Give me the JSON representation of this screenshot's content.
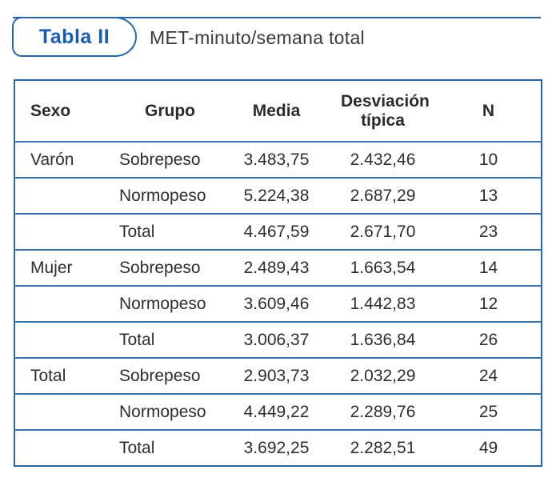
{
  "header": {
    "tab_label": "Tabla II",
    "title": "MET-minuto/semana total"
  },
  "colors": {
    "accent_blue": "#1b5aad",
    "border_blue": "#2a65a6",
    "row_line_blue": "#3b72aa",
    "text_dark": "#2e2e2e"
  },
  "table": {
    "columns": [
      "Sexo",
      "Grupo",
      "Media",
      "Desviación típica",
      "N"
    ],
    "rows": [
      {
        "sexo": "Varón",
        "grupo": "Sobrepeso",
        "media": "3.483,75",
        "desviacion": "2.432,46",
        "n": "10"
      },
      {
        "sexo": "",
        "grupo": "Normopeso",
        "media": "5.224,38",
        "desviacion": "2.687,29",
        "n": "13"
      },
      {
        "sexo": "",
        "grupo": "Total",
        "media": "4.467,59",
        "desviacion": "2.671,70",
        "n": "23"
      },
      {
        "sexo": "Mujer",
        "grupo": "Sobrepeso",
        "media": "2.489,43",
        "desviacion": "1.663,54",
        "n": "14"
      },
      {
        "sexo": "",
        "grupo": "Normopeso",
        "media": "3.609,46",
        "desviacion": "1.442,83",
        "n": "12"
      },
      {
        "sexo": "",
        "grupo": "Total",
        "media": "3.006,37",
        "desviacion": "1.636,84",
        "n": "26"
      },
      {
        "sexo": "Total",
        "grupo": "Sobrepeso",
        "media": "2.903,73",
        "desviacion": "2.032,29",
        "n": "24"
      },
      {
        "sexo": "",
        "grupo": "Normopeso",
        "media": "4.449,22",
        "desviacion": "2.289,76",
        "n": "25"
      },
      {
        "sexo": "",
        "grupo": "Total",
        "media": "3.692,25",
        "desviacion": "2.282,51",
        "n": "49"
      }
    ]
  }
}
